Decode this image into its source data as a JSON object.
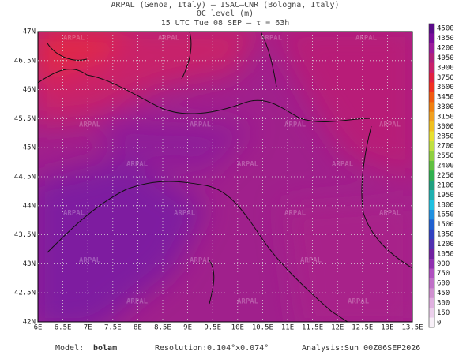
{
  "header": {
    "line1": "ARPAL (Genoa, Italy)  —  ISAC–CNR (Bologna, Italy)",
    "line2": "0C level (m)",
    "line3": "15 UTC Tue 08 SEP  –  τ = 63h"
  },
  "map": {
    "watermark": "ARPAL",
    "x_labels": [
      "6E",
      "6.5E",
      "7E",
      "7.5E",
      "8E",
      "8.5E",
      "9E",
      "9.5E",
      "10E",
      "10.5E",
      "11E",
      "11.5E",
      "12E",
      "12.5E",
      "13E",
      "13.5E"
    ],
    "y_labels": [
      "47N",
      "46.5N",
      "46N",
      "45.5N",
      "45N",
      "44.5N",
      "44N",
      "43.5N",
      "43N",
      "42.5N",
      "42N"
    ]
  },
  "colorbar": {
    "labels": [
      4500,
      4350,
      4200,
      4050,
      3900,
      3750,
      3600,
      3450,
      3300,
      3150,
      3000,
      2850,
      2700,
      2550,
      2400,
      2250,
      2100,
      1950,
      1800,
      1650,
      1500,
      1350,
      1200,
      1050,
      900,
      750,
      600,
      450,
      300,
      150,
      0
    ],
    "colors": [
      "#5a0a8a",
      "#7a0a9a",
      "#9a1a9a",
      "#b0207a",
      "#c8206a",
      "#e02040",
      "#f03020",
      "#f05a10",
      "#f08010",
      "#f0a020",
      "#f0c020",
      "#e8e030",
      "#c0e040",
      "#90d040",
      "#60c040",
      "#30b050",
      "#20a080",
      "#20b0b0",
      "#20c0e0",
      "#2090e0",
      "#2060d0",
      "#3040c0",
      "#5030b0",
      "#7020a0",
      "#9030b0",
      "#b050c0",
      "#c070c8",
      "#d090d0",
      "#e0b0e0",
      "#ecd0ec",
      "#f8f0f8"
    ]
  },
  "footer": {
    "model_label": "Model:",
    "model": "bolam",
    "resolution_label": "Resolution:",
    "resolution": "0.104°x0.074°",
    "analysis_label": "Analysis:",
    "analysis": "Sun 00Z06SEP2026"
  }
}
